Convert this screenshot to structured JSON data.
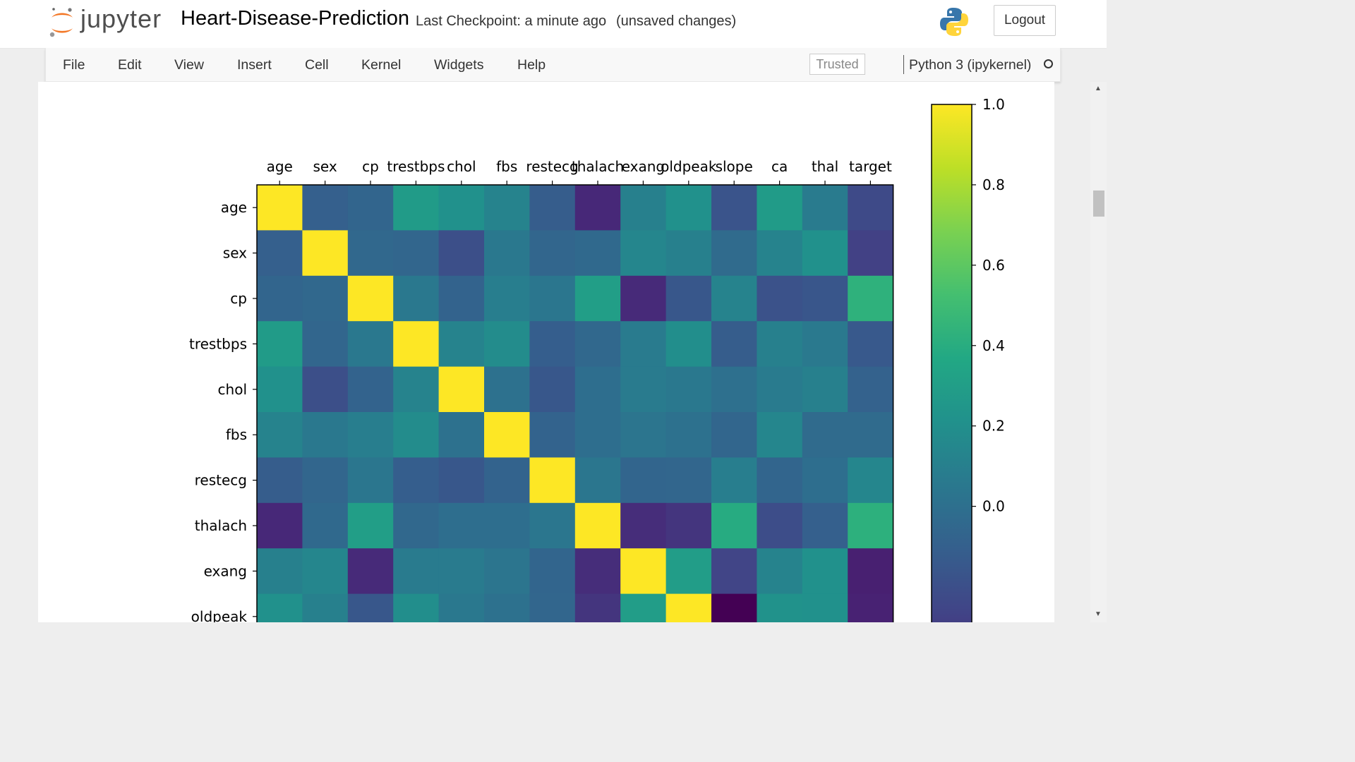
{
  "header": {
    "logo_text": "jupyter",
    "notebook_name": "Heart-Disease-Prediction",
    "checkpoint": "Last Checkpoint: a minute ago",
    "autosave_status": "(unsaved changes)",
    "logout_label": "Logout"
  },
  "menubar": {
    "items": [
      "File",
      "Edit",
      "View",
      "Insert",
      "Cell",
      "Kernel",
      "Widgets",
      "Help"
    ],
    "trusted_label": "Trusted",
    "kernel_name": "Python 3 (ipykernel)"
  },
  "icons": {
    "logo": "jupyter-logo-icon",
    "python": "python-logo-icon",
    "kernel_status": "kernel-idle-circle-icon"
  },
  "chart_data": {
    "type": "heatmap",
    "colormap": "viridis",
    "x_labels": [
      "age",
      "sex",
      "cp",
      "trestbps",
      "chol",
      "fbs",
      "restecg",
      "thalach",
      "exang",
      "oldpeak",
      "slope",
      "ca",
      "thal",
      "target"
    ],
    "y_labels": [
      "age",
      "sex",
      "cp",
      "trestbps",
      "chol",
      "fbs",
      "restecg",
      "thalach",
      "exang",
      "oldpeak"
    ],
    "x_axis_position": "top",
    "values": [
      [
        1.0,
        -0.1,
        -0.07,
        0.28,
        0.21,
        0.12,
        -0.12,
        -0.4,
        0.1,
        0.21,
        -0.17,
        0.28,
        0.07,
        -0.23
      ],
      [
        -0.1,
        1.0,
        -0.05,
        -0.06,
        -0.2,
        0.05,
        -0.06,
        -0.04,
        0.14,
        0.1,
        -0.03,
        0.12,
        0.21,
        -0.28
      ],
      [
        -0.07,
        -0.05,
        1.0,
        0.05,
        -0.08,
        0.09,
        0.04,
        0.3,
        -0.39,
        -0.15,
        0.12,
        -0.18,
        -0.16,
        0.43
      ],
      [
        0.28,
        -0.06,
        0.05,
        1.0,
        0.12,
        0.18,
        -0.11,
        -0.05,
        0.07,
        0.19,
        -0.12,
        0.1,
        0.06,
        -0.14
      ],
      [
        0.21,
        -0.2,
        -0.08,
        0.12,
        1.0,
        0.01,
        -0.15,
        -0.01,
        0.07,
        0.05,
        -0.0,
        0.07,
        0.1,
        -0.09
      ],
      [
        0.12,
        0.05,
        0.09,
        0.18,
        0.01,
        1.0,
        -0.08,
        -0.01,
        0.03,
        0.01,
        -0.06,
        0.14,
        -0.03,
        -0.03
      ],
      [
        -0.12,
        -0.06,
        0.04,
        -0.11,
        -0.15,
        -0.08,
        1.0,
        0.04,
        -0.07,
        -0.06,
        0.09,
        -0.07,
        -0.01,
        0.14
      ],
      [
        -0.4,
        -0.04,
        0.3,
        -0.05,
        -0.01,
        -0.01,
        0.04,
        1.0,
        -0.38,
        -0.34,
        0.39,
        -0.21,
        -0.1,
        0.42
      ],
      [
        0.1,
        0.14,
        -0.39,
        0.07,
        0.07,
        0.03,
        -0.07,
        -0.38,
        1.0,
        0.29,
        -0.26,
        0.12,
        0.21,
        -0.44
      ],
      [
        0.21,
        0.1,
        -0.15,
        0.19,
        0.05,
        0.01,
        -0.06,
        -0.34,
        0.29,
        1.0,
        -0.58,
        0.22,
        0.21,
        -0.43
      ]
    ],
    "colorbar": {
      "ticks": [
        "0.0",
        "0.2",
        "0.4",
        "0.6",
        "0.8",
        "1.0"
      ],
      "tick_values": [
        0.0,
        0.2,
        0.4,
        0.6,
        0.8,
        1.0
      ],
      "range": [
        -0.58,
        1.0
      ]
    }
  }
}
